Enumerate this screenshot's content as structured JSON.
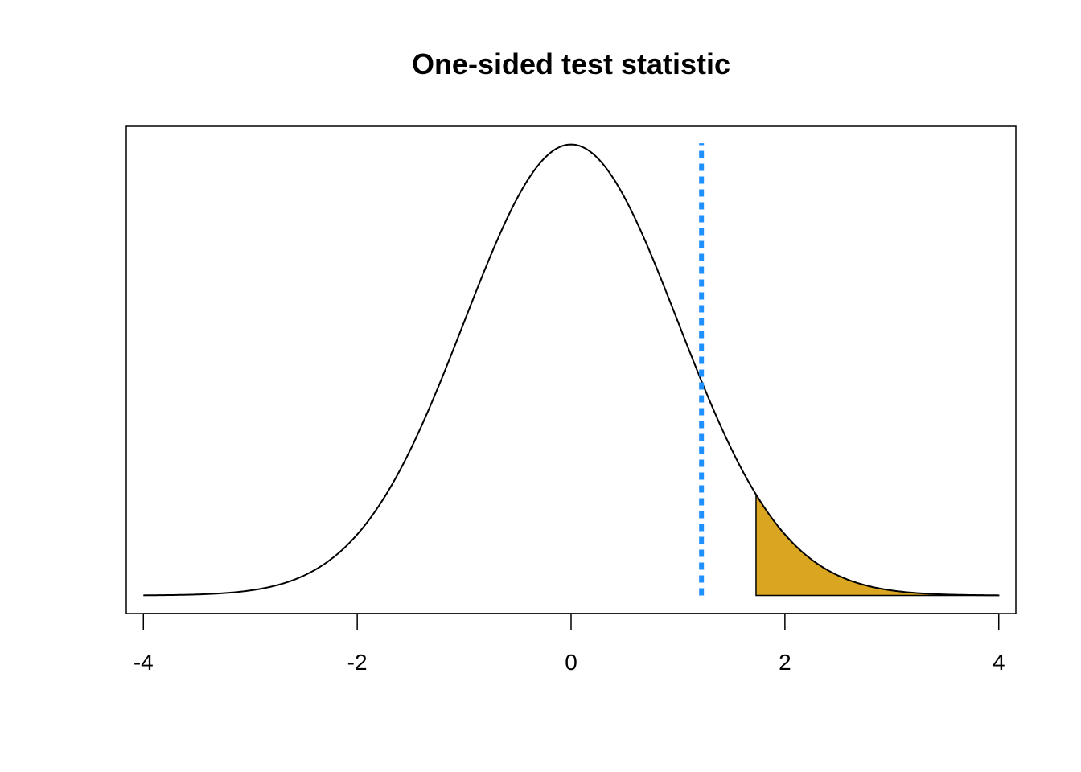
{
  "chart_data": {
    "type": "area",
    "title": "One-sided test statistic",
    "xlabel": "",
    "ylabel": "",
    "xlim": [
      -4.16,
      4.16
    ],
    "ylim": [
      -0.016,
      0.415
    ],
    "x_ticks": [
      -4,
      -2,
      0,
      2,
      4
    ],
    "x_tick_labels": [
      "-4",
      "-2",
      "0",
      "2",
      "4"
    ],
    "grid": false,
    "curve": {
      "distribution": "standard-normal-density",
      "x_range": [
        -4,
        4
      ],
      "color": "#000000"
    },
    "shaded_region": {
      "x_from": 1.73,
      "x_to": 4,
      "fill": "#DAA520",
      "stroke": "#000000"
    },
    "test_statistic_line": {
      "x": 1.22,
      "y_from": 0,
      "y_to": 0.4,
      "color": "#1E90FF",
      "style": "dotted"
    }
  }
}
